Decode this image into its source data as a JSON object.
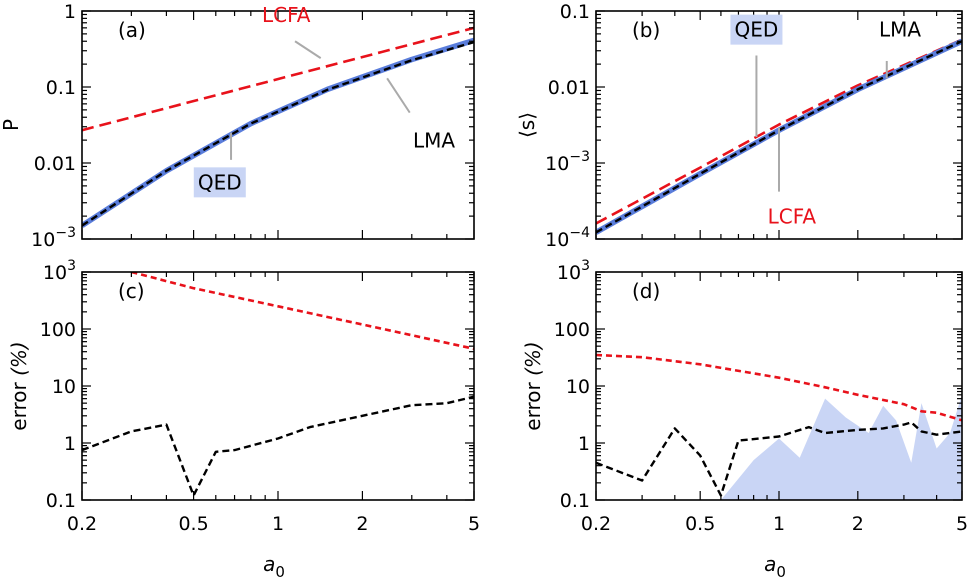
{
  "colors": {
    "lcfa": "#e8121b",
    "lma": "#000000",
    "qed": "#5a7ddb",
    "qed_fill": "#c9d5f5",
    "annot_line": "#aaaaaa",
    "frame": "#000000"
  },
  "chart_data": [
    {
      "id": "a",
      "type": "line",
      "panel_label": "(a)",
      "xscale": "log",
      "yscale": "log",
      "xlim": [
        0.2,
        5
      ],
      "ylim": [
        0.001,
        1
      ],
      "ylabel": "P",
      "xticks": [],
      "yticks": [
        {
          "v": 0.001,
          "b": "10",
          "e": "−3"
        },
        {
          "v": 0.01,
          "t": "0.01"
        },
        {
          "v": 0.1,
          "t": "0.1"
        },
        {
          "v": 1,
          "t": "1"
        }
      ],
      "series": [
        {
          "name": "LCFA",
          "style": "lcfa_dash",
          "x": [
            0.2,
            5
          ],
          "y": [
            0.027,
            0.6
          ]
        },
        {
          "name": "QED",
          "style": "qed_solid",
          "x": [
            0.2,
            0.4,
            0.8,
            1.5,
            3,
            5
          ],
          "y": [
            0.0015,
            0.0079,
            0.033,
            0.093,
            0.23,
            0.41
          ]
        },
        {
          "name": "LMA",
          "style": "lma_dash",
          "x": [
            0.2,
            0.4,
            0.8,
            1.5,
            3,
            5
          ],
          "y": [
            0.0015,
            0.0079,
            0.033,
            0.092,
            0.225,
            0.39
          ]
        }
      ],
      "annotations": [
        {
          "text": "LCFA",
          "color": "lcfa",
          "x": 1.07,
          "y": 0.72,
          "lx1": 1.15,
          "ly1": 0.4,
          "lx2": 1.42,
          "ly2": 0.24,
          "boxed": false
        },
        {
          "text": "LMA",
          "color": "lma",
          "x": 3.6,
          "y": 0.016,
          "lx1": 2.45,
          "ly1": 0.13,
          "lx2": 2.95,
          "ly2": 0.046,
          "boxed": false
        },
        {
          "text": "QED",
          "color": "lma",
          "x": 0.62,
          "y": 0.0045,
          "lx1": 0.68,
          "ly1": 0.025,
          "lx2": 0.68,
          "ly2": 0.011,
          "boxed": true
        }
      ]
    },
    {
      "id": "b",
      "type": "line",
      "panel_label": "(b)",
      "xscale": "log",
      "yscale": "log",
      "xlim": [
        0.2,
        5
      ],
      "ylim": [
        0.0001,
        0.1
      ],
      "ylabel": "⟨s⟩",
      "yticks": [
        {
          "v": 0.0001,
          "b": "10",
          "e": "−4"
        },
        {
          "v": 0.001,
          "b": "10",
          "e": "−3"
        },
        {
          "v": 0.01,
          "t": "0.01"
        },
        {
          "v": 0.1,
          "t": "0.1"
        }
      ],
      "series": [
        {
          "name": "LCFA",
          "style": "lcfa_dash",
          "x": [
            0.2,
            0.5,
            1,
            2,
            5
          ],
          "y": [
            0.00016,
            0.00087,
            0.0032,
            0.0105,
            0.042
          ]
        },
        {
          "name": "QED",
          "style": "qed_solid",
          "x": [
            0.2,
            0.5,
            1,
            2,
            5
          ],
          "y": [
            0.000122,
            0.00072,
            0.0027,
            0.0093,
            0.04
          ]
        },
        {
          "name": "LMA",
          "style": "lma_dash",
          "x": [
            0.2,
            0.5,
            1,
            2,
            5
          ],
          "y": [
            0.000122,
            0.00072,
            0.0027,
            0.0093,
            0.04
          ]
        }
      ],
      "annotations": [
        {
          "text": "QED",
          "color": "lma",
          "x": 0.82,
          "y": 0.046,
          "lx1": 0.82,
          "ly1": 0.026,
          "lx2": 0.82,
          "ly2": 0.0022,
          "boxed": true
        },
        {
          "text": "LMA",
          "color": "lma",
          "x": 2.9,
          "y": 0.046,
          "lx1": 2.58,
          "ly1": 0.022,
          "lx2": 2.58,
          "ly2": 0.013,
          "boxed": false
        },
        {
          "text": "LCFA",
          "color": "lcfa",
          "x": 1.12,
          "y": 0.00016,
          "lx1": 1.0,
          "ly1": 0.0029,
          "lx2": 1.0,
          "ly2": 0.00042,
          "boxed": false
        }
      ]
    },
    {
      "id": "c",
      "type": "line",
      "panel_label": "(c)",
      "xscale": "log",
      "yscale": "log",
      "xlim": [
        0.2,
        5
      ],
      "ylim": [
        0.1,
        1000
      ],
      "ylabel": "error (%)",
      "xlabel": "a0",
      "xticks": [
        {
          "v": 0.2,
          "t": "0.2"
        },
        {
          "v": 0.5,
          "t": "0.5"
        },
        {
          "v": 1,
          "t": "1"
        },
        {
          "v": 2,
          "t": "2"
        },
        {
          "v": 5,
          "t": "5"
        }
      ],
      "yticks": [
        {
          "v": 0.1,
          "t": "0.1"
        },
        {
          "v": 1,
          "t": "1"
        },
        {
          "v": 10,
          "t": "10"
        },
        {
          "v": 100,
          "t": "100"
        },
        {
          "v": 1000,
          "b": "10",
          "e": "3"
        }
      ],
      "series": [
        {
          "name": "LCFA",
          "style": "lcfa_dash_fine",
          "x": [
            0.3,
            0.5,
            1,
            2,
            5
          ],
          "y": [
            1000,
            520,
            250,
            120,
            45
          ]
        },
        {
          "name": "LMA",
          "style": "lma_dash",
          "x": [
            0.2,
            0.3,
            0.4,
            0.5,
            0.6,
            0.7,
            1.0,
            1.3,
            2,
            3,
            4,
            5
          ],
          "y": [
            0.75,
            1.6,
            2.1,
            0.12,
            0.7,
            0.75,
            1.2,
            1.9,
            3.0,
            4.6,
            5.0,
            6.5
          ]
        }
      ],
      "annotations": []
    },
    {
      "id": "d",
      "type": "line",
      "panel_label": "(d)",
      "xscale": "log",
      "yscale": "log",
      "xlim": [
        0.2,
        5
      ],
      "ylim": [
        0.1,
        1000
      ],
      "ylabel": "error (%)",
      "xlabel": "a0",
      "xticks": [
        {
          "v": 0.2,
          "t": "0.2"
        },
        {
          "v": 0.5,
          "t": "0.5"
        },
        {
          "v": 1,
          "t": "1"
        },
        {
          "v": 2,
          "t": "2"
        },
        {
          "v": 5,
          "t": "5"
        }
      ],
      "yticks": [
        {
          "v": 0.1,
          "t": "0.1"
        },
        {
          "v": 1,
          "t": "1"
        },
        {
          "v": 10,
          "t": "10"
        },
        {
          "v": 100,
          "t": "100"
        },
        {
          "v": 1000,
          "b": "10",
          "e": "3"
        }
      ],
      "fill": {
        "x": [
          0.6,
          0.8,
          1.0,
          1.2,
          1.5,
          1.8,
          2.2,
          2.5,
          2.8,
          3.2,
          3.5,
          4,
          4.5,
          5
        ],
        "y": [
          0.1,
          0.5,
          1.2,
          0.55,
          6.0,
          2.8,
          1.5,
          4.5,
          2.5,
          0.45,
          5.0,
          0.8,
          1.5,
          7.0
        ]
      },
      "series": [
        {
          "name": "LCFA",
          "style": "lcfa_dash_fine",
          "x": [
            0.2,
            0.3,
            0.5,
            1,
            1.5,
            2,
            3,
            3.5,
            4,
            5
          ],
          "y": [
            35,
            32,
            24,
            14,
            9.5,
            7,
            4.8,
            3.6,
            3.4,
            2.5
          ]
        },
        {
          "name": "LMA",
          "style": "lma_dash",
          "x": [
            0.2,
            0.3,
            0.4,
            0.5,
            0.6,
            0.7,
            1.0,
            1.3,
            1.5,
            2,
            2.5,
            3,
            3.2,
            3.5,
            4,
            5
          ],
          "y": [
            0.45,
            0.22,
            1.8,
            0.6,
            0.12,
            1.1,
            1.3,
            1.9,
            1.5,
            1.7,
            1.8,
            2.1,
            2.3,
            1.6,
            1.4,
            1.6
          ]
        }
      ],
      "annotations": []
    }
  ]
}
